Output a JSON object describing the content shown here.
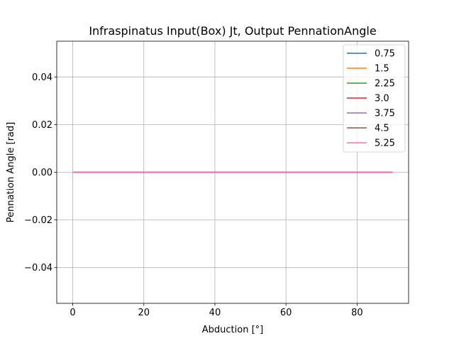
{
  "chart_data": {
    "type": "line",
    "title": "Infraspinatus Input(Box) Jt, Output PennationAngle",
    "xlabel": "Abduction [°]",
    "ylabel": "Pennation Angle [rad]",
    "xlim": [
      -4.5,
      94.5
    ],
    "ylim": [
      -0.055,
      0.055
    ],
    "xticks": [
      0,
      20,
      40,
      60,
      80
    ],
    "yticks": [
      -0.04,
      -0.02,
      0.0,
      0.02,
      0.04
    ],
    "xtick_labels": [
      "0",
      "20",
      "40",
      "60",
      "80"
    ],
    "ytick_labels": [
      "−0.04",
      "−0.02",
      "0.00",
      "0.02",
      "0.04"
    ],
    "grid": true,
    "legend_position": "top-right",
    "series": [
      {
        "name": "0.75",
        "color": "#1f77b4",
        "x": [
          0,
          90
        ],
        "y": [
          0,
          0
        ]
      },
      {
        "name": "1.5",
        "color": "#ff7f0e",
        "x": [
          0,
          90
        ],
        "y": [
          0,
          0
        ]
      },
      {
        "name": "2.25",
        "color": "#2ca02c",
        "x": [
          0,
          90
        ],
        "y": [
          0,
          0
        ]
      },
      {
        "name": "3.0",
        "color": "#d62728",
        "x": [
          0,
          90
        ],
        "y": [
          0,
          0
        ]
      },
      {
        "name": "3.75",
        "color": "#9467bd",
        "x": [
          0,
          90
        ],
        "y": [
          0,
          0
        ]
      },
      {
        "name": "4.5",
        "color": "#8c564b",
        "x": [
          0,
          90
        ],
        "y": [
          0,
          0
        ]
      },
      {
        "name": "5.25",
        "color": "#e377c2",
        "x": [
          0,
          90
        ],
        "y": [
          0,
          0
        ]
      }
    ]
  }
}
